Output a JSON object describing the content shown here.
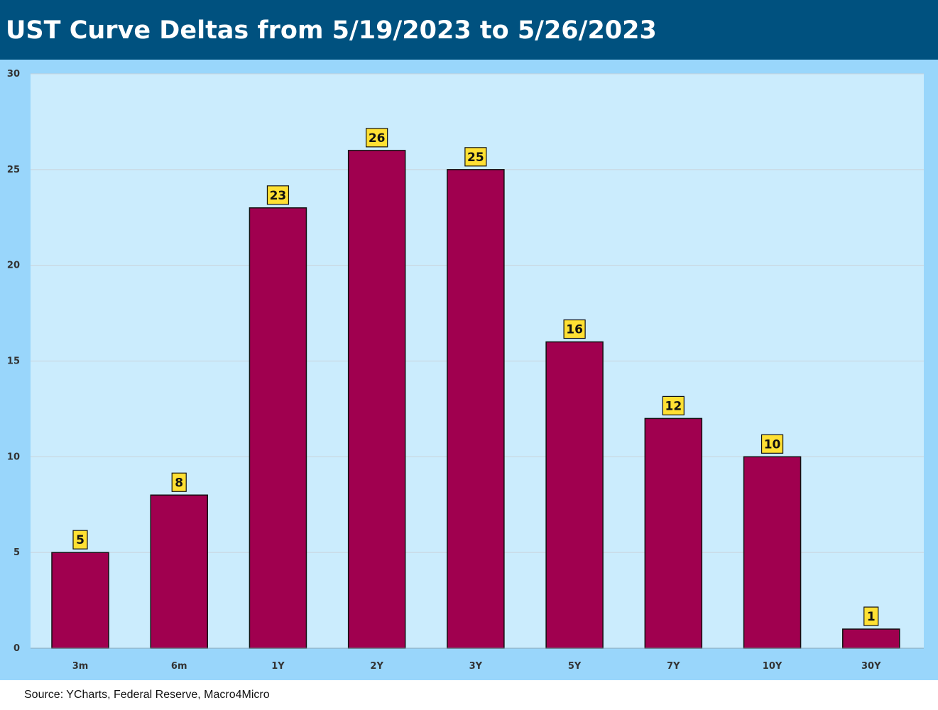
{
  "header": {
    "title": "UST Curve Deltas from 5/19/2023 to 5/26/2023"
  },
  "footer": {
    "source": "Source: YCharts, Federal Reserve, Macro4Micro"
  },
  "chart_data": {
    "type": "bar",
    "title": "UST Curve Deltas from 5/19/2023 to 5/26/2023",
    "xlabel": "",
    "ylabel": "",
    "categories": [
      "3m",
      "6m",
      "1Y",
      "2Y",
      "3Y",
      "5Y",
      "7Y",
      "10Y",
      "30Y"
    ],
    "values": [
      5,
      8,
      23,
      26,
      25,
      16,
      12,
      10,
      1
    ],
    "data_labels": [
      "5",
      "8",
      "23",
      "26",
      "25",
      "16",
      "12",
      "10",
      "1"
    ],
    "ylim": [
      0,
      30
    ],
    "yticks": [
      0,
      5,
      10,
      15,
      20,
      25,
      30
    ],
    "grid": true,
    "legend": "none",
    "colors": {
      "bar": "#a0004f",
      "bar_border": "#111111",
      "plot_background": "#cbecfd",
      "outer_background": "#99d6fb",
      "gridline": "#c9d3da",
      "label_box": "#ffe033",
      "header_background": "#00517f"
    }
  }
}
